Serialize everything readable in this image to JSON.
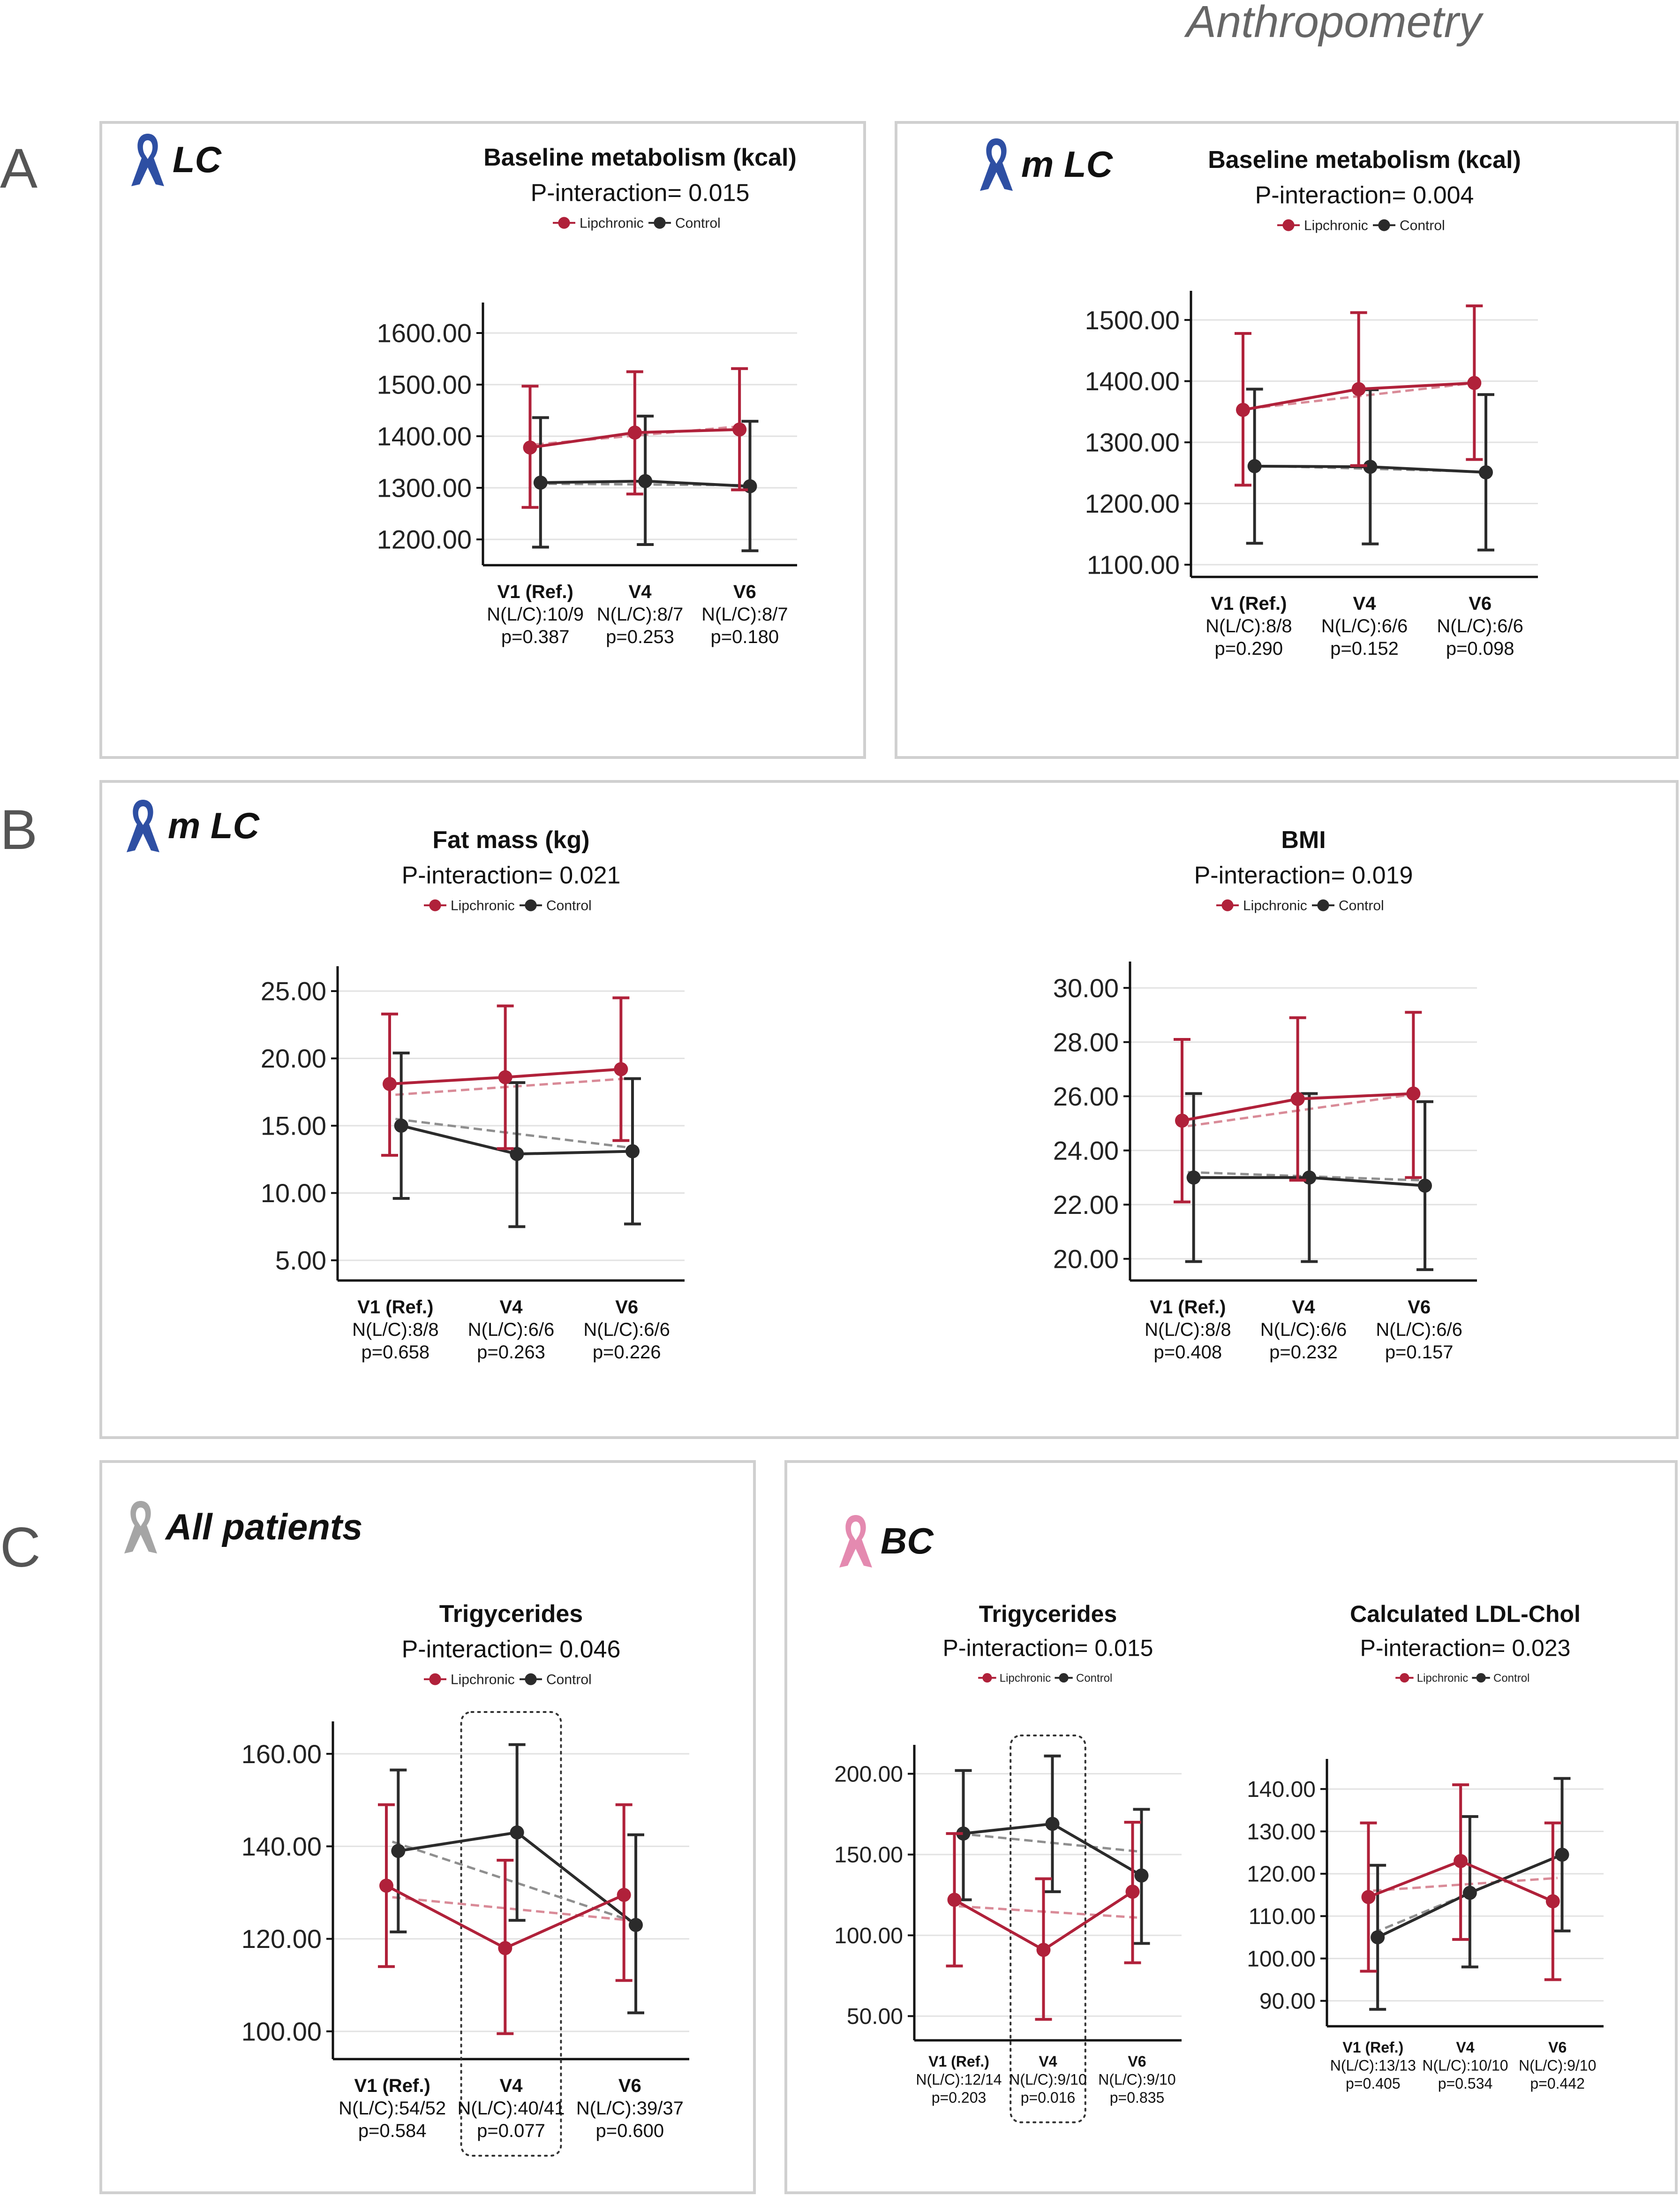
{
  "header": "Anthropometry",
  "colors": {
    "lipchronic": "#b0213a",
    "control": "#2b2b2b",
    "lipTrend": "#d98b98",
    "ctlTrend": "#8f8f8f"
  },
  "sections": [
    {
      "letter": "A"
    },
    {
      "letter": "B"
    },
    {
      "letter": "C"
    }
  ],
  "cohorts": [
    {
      "label": "LC",
      "ribbon": "blue"
    },
    {
      "label": "m LC",
      "ribbon": "blue"
    },
    {
      "label": "m LC",
      "ribbon": "blue"
    },
    {
      "label": "All patients",
      "ribbon": "gray"
    },
    {
      "label": "BC",
      "ribbon": "pink"
    }
  ],
  "chart_data": [
    {
      "type": "line",
      "title": "Baseline metabolism (kcal)",
      "subtitle": "P-interaction= 0.015",
      "legend": [
        "Lipchronic",
        "Control"
      ],
      "ylim": [
        1150,
        1650
      ],
      "yticks": [
        1200,
        1300,
        1400,
        1500,
        1600
      ],
      "categories": [
        "V1 (Ref.)",
        "V4",
        "V6"
      ],
      "n_labels": [
        "N(L/C):10/9",
        "N(L/C):8/7",
        "N(L/C):8/7"
      ],
      "p_labels": [
        "p=0.387",
        "p=0.253",
        "p=0.180"
      ],
      "series": [
        {
          "name": "Lipchronic",
          "values": [
            1378,
            1407,
            1413
          ],
          "err_low": [
            1262,
            1288,
            1296
          ],
          "err_high": [
            1497,
            1525,
            1531
          ],
          "trend": [
            1384,
            1420
          ]
        },
        {
          "name": "Control",
          "values": [
            1310,
            1313,
            1303
          ],
          "err_low": [
            1185,
            1190,
            1178
          ],
          "err_high": [
            1436,
            1439,
            1429
          ],
          "trend": [
            1308,
            1305
          ]
        }
      ]
    },
    {
      "type": "line",
      "title": "Baseline metabolism (kcal)",
      "subtitle": "P-interaction= 0.004",
      "legend": [
        "Lipchronic",
        "Control"
      ],
      "ylim": [
        1080,
        1540
      ],
      "yticks": [
        1100,
        1200,
        1300,
        1400,
        1500
      ],
      "categories": [
        "V1 (Ref.)",
        "V4",
        "V6"
      ],
      "n_labels": [
        "N(L/C):8/8",
        "N(L/C):6/6",
        "N(L/C):6/6"
      ],
      "p_labels": [
        "p=0.290",
        "p=0.152",
        "p=0.098"
      ],
      "series": [
        {
          "name": "Lipchronic",
          "values": [
            1353,
            1387,
            1397
          ],
          "err_low": [
            1230,
            1262,
            1272
          ],
          "err_high": [
            1478,
            1512,
            1523
          ],
          "trend": [
            1355,
            1398
          ]
        },
        {
          "name": "Control",
          "values": [
            1261,
            1260,
            1251
          ],
          "err_low": [
            1135,
            1134,
            1124
          ],
          "err_high": [
            1387,
            1386,
            1378
          ],
          "trend": [
            1262,
            1252
          ]
        }
      ]
    },
    {
      "type": "line",
      "title": "Fat mass (kg)",
      "subtitle": "P-interaction= 0.021",
      "legend": [
        "Lipchronic",
        "Control"
      ],
      "ylim": [
        3.5,
        26.5
      ],
      "yticks": [
        5,
        10,
        15,
        20,
        25
      ],
      "categories": [
        "V1 (Ref.)",
        "V4",
        "V6"
      ],
      "n_labels": [
        "N(L/C):8/8",
        "N(L/C):6/6",
        "N(L/C):6/6"
      ],
      "p_labels": [
        "p=0.658",
        "p=0.263",
        "p=0.226"
      ],
      "series": [
        {
          "name": "Lipchronic",
          "values": [
            18.1,
            18.6,
            19.2
          ],
          "err_low": [
            12.8,
            13.3,
            13.9
          ],
          "err_high": [
            23.3,
            23.9,
            24.5
          ],
          "trend": [
            17.3,
            18.5
          ]
        },
        {
          "name": "Control",
          "values": [
            15.0,
            12.9,
            13.1
          ],
          "err_low": [
            9.6,
            7.5,
            7.7
          ],
          "err_high": [
            20.4,
            18.2,
            18.5
          ],
          "trend": [
            15.5,
            13.4
          ]
        }
      ]
    },
    {
      "type": "line",
      "title": "BMI",
      "subtitle": "P-interaction= 0.019",
      "legend": [
        "Lipchronic",
        "Control"
      ],
      "ylim": [
        19.2,
        30.8
      ],
      "yticks": [
        20,
        22,
        24,
        26,
        28,
        30
      ],
      "categories": [
        "V1 (Ref.)",
        "V4",
        "V6"
      ],
      "n_labels": [
        "N(L/C):8/8",
        "N(L/C):6/6",
        "N(L/C):6/6"
      ],
      "p_labels": [
        "p=0.408",
        "p=0.232",
        "p=0.157"
      ],
      "series": [
        {
          "name": "Lipchronic",
          "values": [
            25.1,
            25.9,
            26.1
          ],
          "err_low": [
            22.1,
            22.9,
            23.0
          ],
          "err_high": [
            28.1,
            28.9,
            29.1
          ],
          "trend": [
            24.9,
            26.1
          ]
        },
        {
          "name": "Control",
          "values": [
            23.0,
            23.0,
            22.7
          ],
          "err_low": [
            19.9,
            19.9,
            19.6
          ],
          "err_high": [
            26.1,
            26.1,
            25.8
          ],
          "trend": [
            23.2,
            22.9
          ]
        }
      ]
    },
    {
      "type": "line",
      "title": "Trigycerides",
      "subtitle": "P-interaction= 0.046",
      "legend": [
        "Lipchronic",
        "Control"
      ],
      "ylim": [
        94,
        166
      ],
      "yticks": [
        100,
        120,
        140,
        160
      ],
      "categories": [
        "V1 (Ref.)",
        "V4",
        "V6"
      ],
      "n_labels": [
        "N(L/C):54/52",
        "N(L/C):40/41",
        "N(L/C):39/37"
      ],
      "p_labels": [
        "p=0.584",
        "p=0.077",
        "p=0.600"
      ],
      "highlight": "V4",
      "series": [
        {
          "name": "Lipchronic",
          "values": [
            131.5,
            118,
            129.5
          ],
          "err_low": [
            114,
            99.5,
            111
          ],
          "err_high": [
            149,
            137,
            149
          ],
          "trend": [
            129,
            124
          ]
        },
        {
          "name": "Control",
          "values": [
            139,
            143,
            123
          ],
          "err_low": [
            121.5,
            124,
            104
          ],
          "err_high": [
            156.5,
            162,
            142.5
          ],
          "trend": [
            141,
            124
          ]
        }
      ]
    },
    {
      "type": "line",
      "title": "Trigycerides",
      "subtitle": "P-interaction= 0.015",
      "legend": [
        "Lipchronic",
        "Control"
      ],
      "ylim": [
        35,
        215
      ],
      "yticks": [
        50,
        100,
        150,
        200
      ],
      "categories": [
        "V1 (Ref.)",
        "V4",
        "V6"
      ],
      "n_labels": [
        "N(L/C):12/14",
        "N(L/C):9/10",
        "N(L/C):9/10"
      ],
      "p_labels": [
        "p=0.203",
        "p=0.016",
        "p=0.835"
      ],
      "highlight": "V4",
      "series": [
        {
          "name": "Lipchronic",
          "values": [
            122,
            91,
            127
          ],
          "err_low": [
            81,
            48,
            83
          ],
          "err_high": [
            163,
            135,
            170
          ],
          "trend": [
            118,
            111
          ]
        },
        {
          "name": "Control",
          "values": [
            163,
            169,
            137
          ],
          "err_low": [
            122,
            127,
            95
          ],
          "err_high": [
            202,
            211,
            178
          ],
          "trend": [
            163,
            152
          ]
        }
      ]
    },
    {
      "type": "line",
      "title": "Calculated LDL-Chol",
      "subtitle": "P-interaction= 0.023",
      "legend": [
        "Lipchronic",
        "Control"
      ],
      "ylim": [
        84,
        146
      ],
      "yticks": [
        90,
        100,
        110,
        120,
        130,
        140
      ],
      "categories": [
        "V1 (Ref.)",
        "V4",
        "V6"
      ],
      "n_labels": [
        "N(L/C):13/13",
        "N(L/C):10/10",
        "N(L/C):9/10"
      ],
      "p_labels": [
        "p=0.405",
        "p=0.534",
        "p=0.442"
      ],
      "series": [
        {
          "name": "Lipchronic",
          "values": [
            114.5,
            123,
            113.5
          ],
          "err_low": [
            97,
            104.5,
            95
          ],
          "err_high": [
            132,
            141,
            132
          ],
          "trend": [
            116,
            119
          ]
        },
        {
          "name": "Control",
          "values": [
            105,
            115.5,
            124.5
          ],
          "err_low": [
            88,
            98,
            106.5
          ],
          "err_high": [
            122,
            133.5,
            142.5
          ],
          "trend": [
            106,
            124
          ]
        }
      ]
    }
  ]
}
